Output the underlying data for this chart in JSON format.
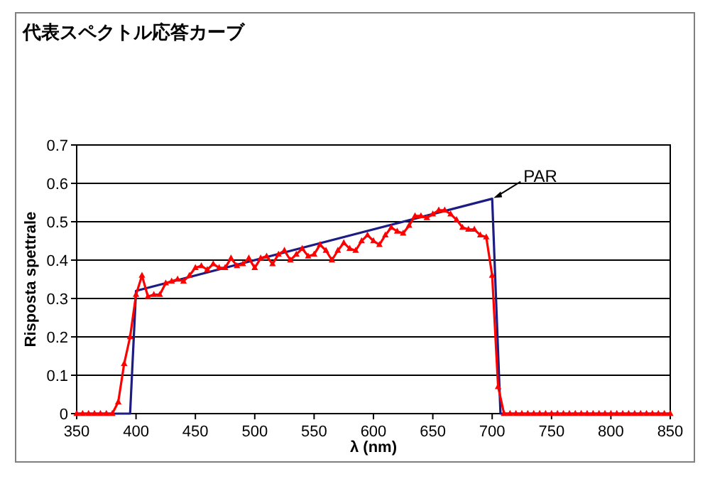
{
  "chart_data": {
    "type": "line",
    "title": "代表スペクトル応答カーブ",
    "xlabel": "λ (nm)",
    "ylabel": "Risposta spettrale",
    "xlim": [
      350,
      850
    ],
    "ylim": [
      0,
      0.7
    ],
    "xticks": [
      350,
      400,
      450,
      500,
      550,
      600,
      650,
      700,
      750,
      800,
      850
    ],
    "yticks": [
      0,
      0.1,
      0.2,
      0.3,
      0.4,
      0.5,
      0.6,
      0.7
    ],
    "grid": "y",
    "annotations": [
      {
        "text": "PAR",
        "x": 700,
        "y": 0.56
      }
    ],
    "series": [
      {
        "color": "#1c1c82",
        "marker": "none",
        "x": [
          350,
          395,
          400,
          700,
          707,
          850
        ],
        "values": [
          0,
          0,
          0.32,
          0.56,
          0,
          0
        ]
      },
      {
        "color": "#ff0000",
        "marker": "triangle",
        "x": [
          350,
          355,
          360,
          365,
          370,
          375,
          380,
          385,
          390,
          395,
          400,
          405,
          410,
          415,
          420,
          425,
          430,
          435,
          440,
          445,
          450,
          455,
          460,
          465,
          470,
          475,
          480,
          485,
          490,
          495,
          500,
          505,
          510,
          515,
          520,
          525,
          530,
          535,
          540,
          545,
          550,
          555,
          560,
          565,
          570,
          575,
          580,
          585,
          590,
          595,
          600,
          605,
          610,
          615,
          620,
          625,
          630,
          635,
          640,
          645,
          650,
          655,
          660,
          665,
          670,
          675,
          680,
          685,
          690,
          695,
          700,
          705,
          710,
          715,
          720,
          725,
          730,
          735,
          740,
          745,
          750,
          755,
          760,
          765,
          770,
          775,
          780,
          785,
          790,
          795,
          800,
          805,
          810,
          815,
          820,
          825,
          830,
          835,
          840,
          845,
          850
        ],
        "values": [
          0,
          0,
          0,
          0,
          0,
          0,
          0,
          0.03,
          0.13,
          0.2,
          0.31,
          0.36,
          0.305,
          0.31,
          0.31,
          0.34,
          0.345,
          0.35,
          0.345,
          0.36,
          0.38,
          0.385,
          0.375,
          0.39,
          0.38,
          0.38,
          0.405,
          0.385,
          0.39,
          0.405,
          0.38,
          0.405,
          0.41,
          0.39,
          0.415,
          0.425,
          0.4,
          0.415,
          0.43,
          0.41,
          0.415,
          0.44,
          0.425,
          0.4,
          0.425,
          0.445,
          0.43,
          0.425,
          0.45,
          0.465,
          0.45,
          0.44,
          0.465,
          0.485,
          0.475,
          0.47,
          0.49,
          0.515,
          0.515,
          0.51,
          0.52,
          0.53,
          0.53,
          0.52,
          0.505,
          0.485,
          0.48,
          0.48,
          0.465,
          0.46,
          0.36,
          0.07,
          0,
          0,
          0,
          0,
          0,
          0,
          0,
          0,
          0,
          0,
          0,
          0,
          0,
          0,
          0,
          0,
          0,
          0,
          0,
          0,
          0,
          0,
          0,
          0,
          0,
          0,
          0,
          0,
          0
        ]
      }
    ]
  }
}
